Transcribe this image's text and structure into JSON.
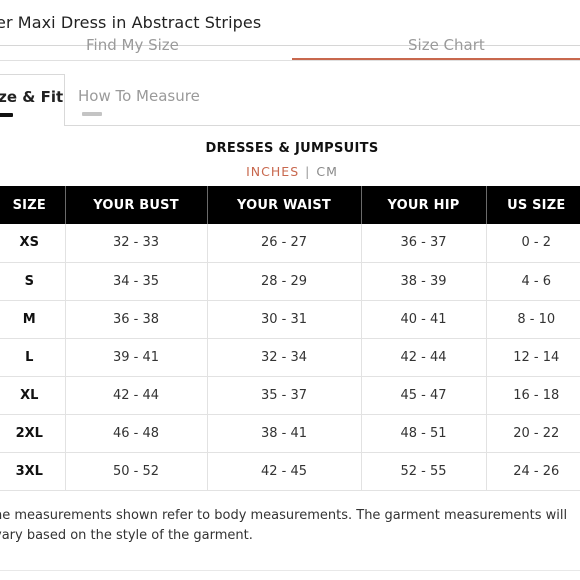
{
  "header": {
    "title": "er Maxi Dress in Abstract Stripes"
  },
  "main_tabs": [
    {
      "label": "Find My Size"
    },
    {
      "label": "Size Chart"
    }
  ],
  "colors": {
    "accent": "#c8684e",
    "header_bg": "#000000"
  },
  "sub_tabs": [
    {
      "label": "ize & Fit",
      "active": true
    },
    {
      "label": "How To Measure",
      "active": false
    }
  ],
  "section": {
    "title": "DRESSES & JUMPSUITS",
    "units": {
      "active": "INCHES",
      "separator": "|",
      "inactive": "CM"
    }
  },
  "table": {
    "headers": [
      "SIZE",
      "YOUR BUST",
      "YOUR WAIST",
      "YOUR HIP",
      "US SIZE"
    ],
    "rows": [
      [
        "XS",
        "32 - 33",
        "26 - 27",
        "36 - 37",
        "0 - 2"
      ],
      [
        "S",
        "34 - 35",
        "28 - 29",
        "38 - 39",
        "4 - 6"
      ],
      [
        "M",
        "36 - 38",
        "30 - 31",
        "40 - 41",
        "8 - 10"
      ],
      [
        "L",
        "39 - 41",
        "32 - 34",
        "42 - 44",
        "12 - 14"
      ],
      [
        "XL",
        "42 - 44",
        "35 - 37",
        "45 - 47",
        "16 - 18"
      ],
      [
        "2XL",
        "46 - 48",
        "38 - 41",
        "48 - 51",
        "20 - 22"
      ],
      [
        "3XL",
        "50 - 52",
        "42 - 45",
        "52 - 55",
        "24 - 26"
      ]
    ]
  },
  "footnote": "he measurements shown refer to body measurements. The garment measurements will vary based on the style of the garment."
}
